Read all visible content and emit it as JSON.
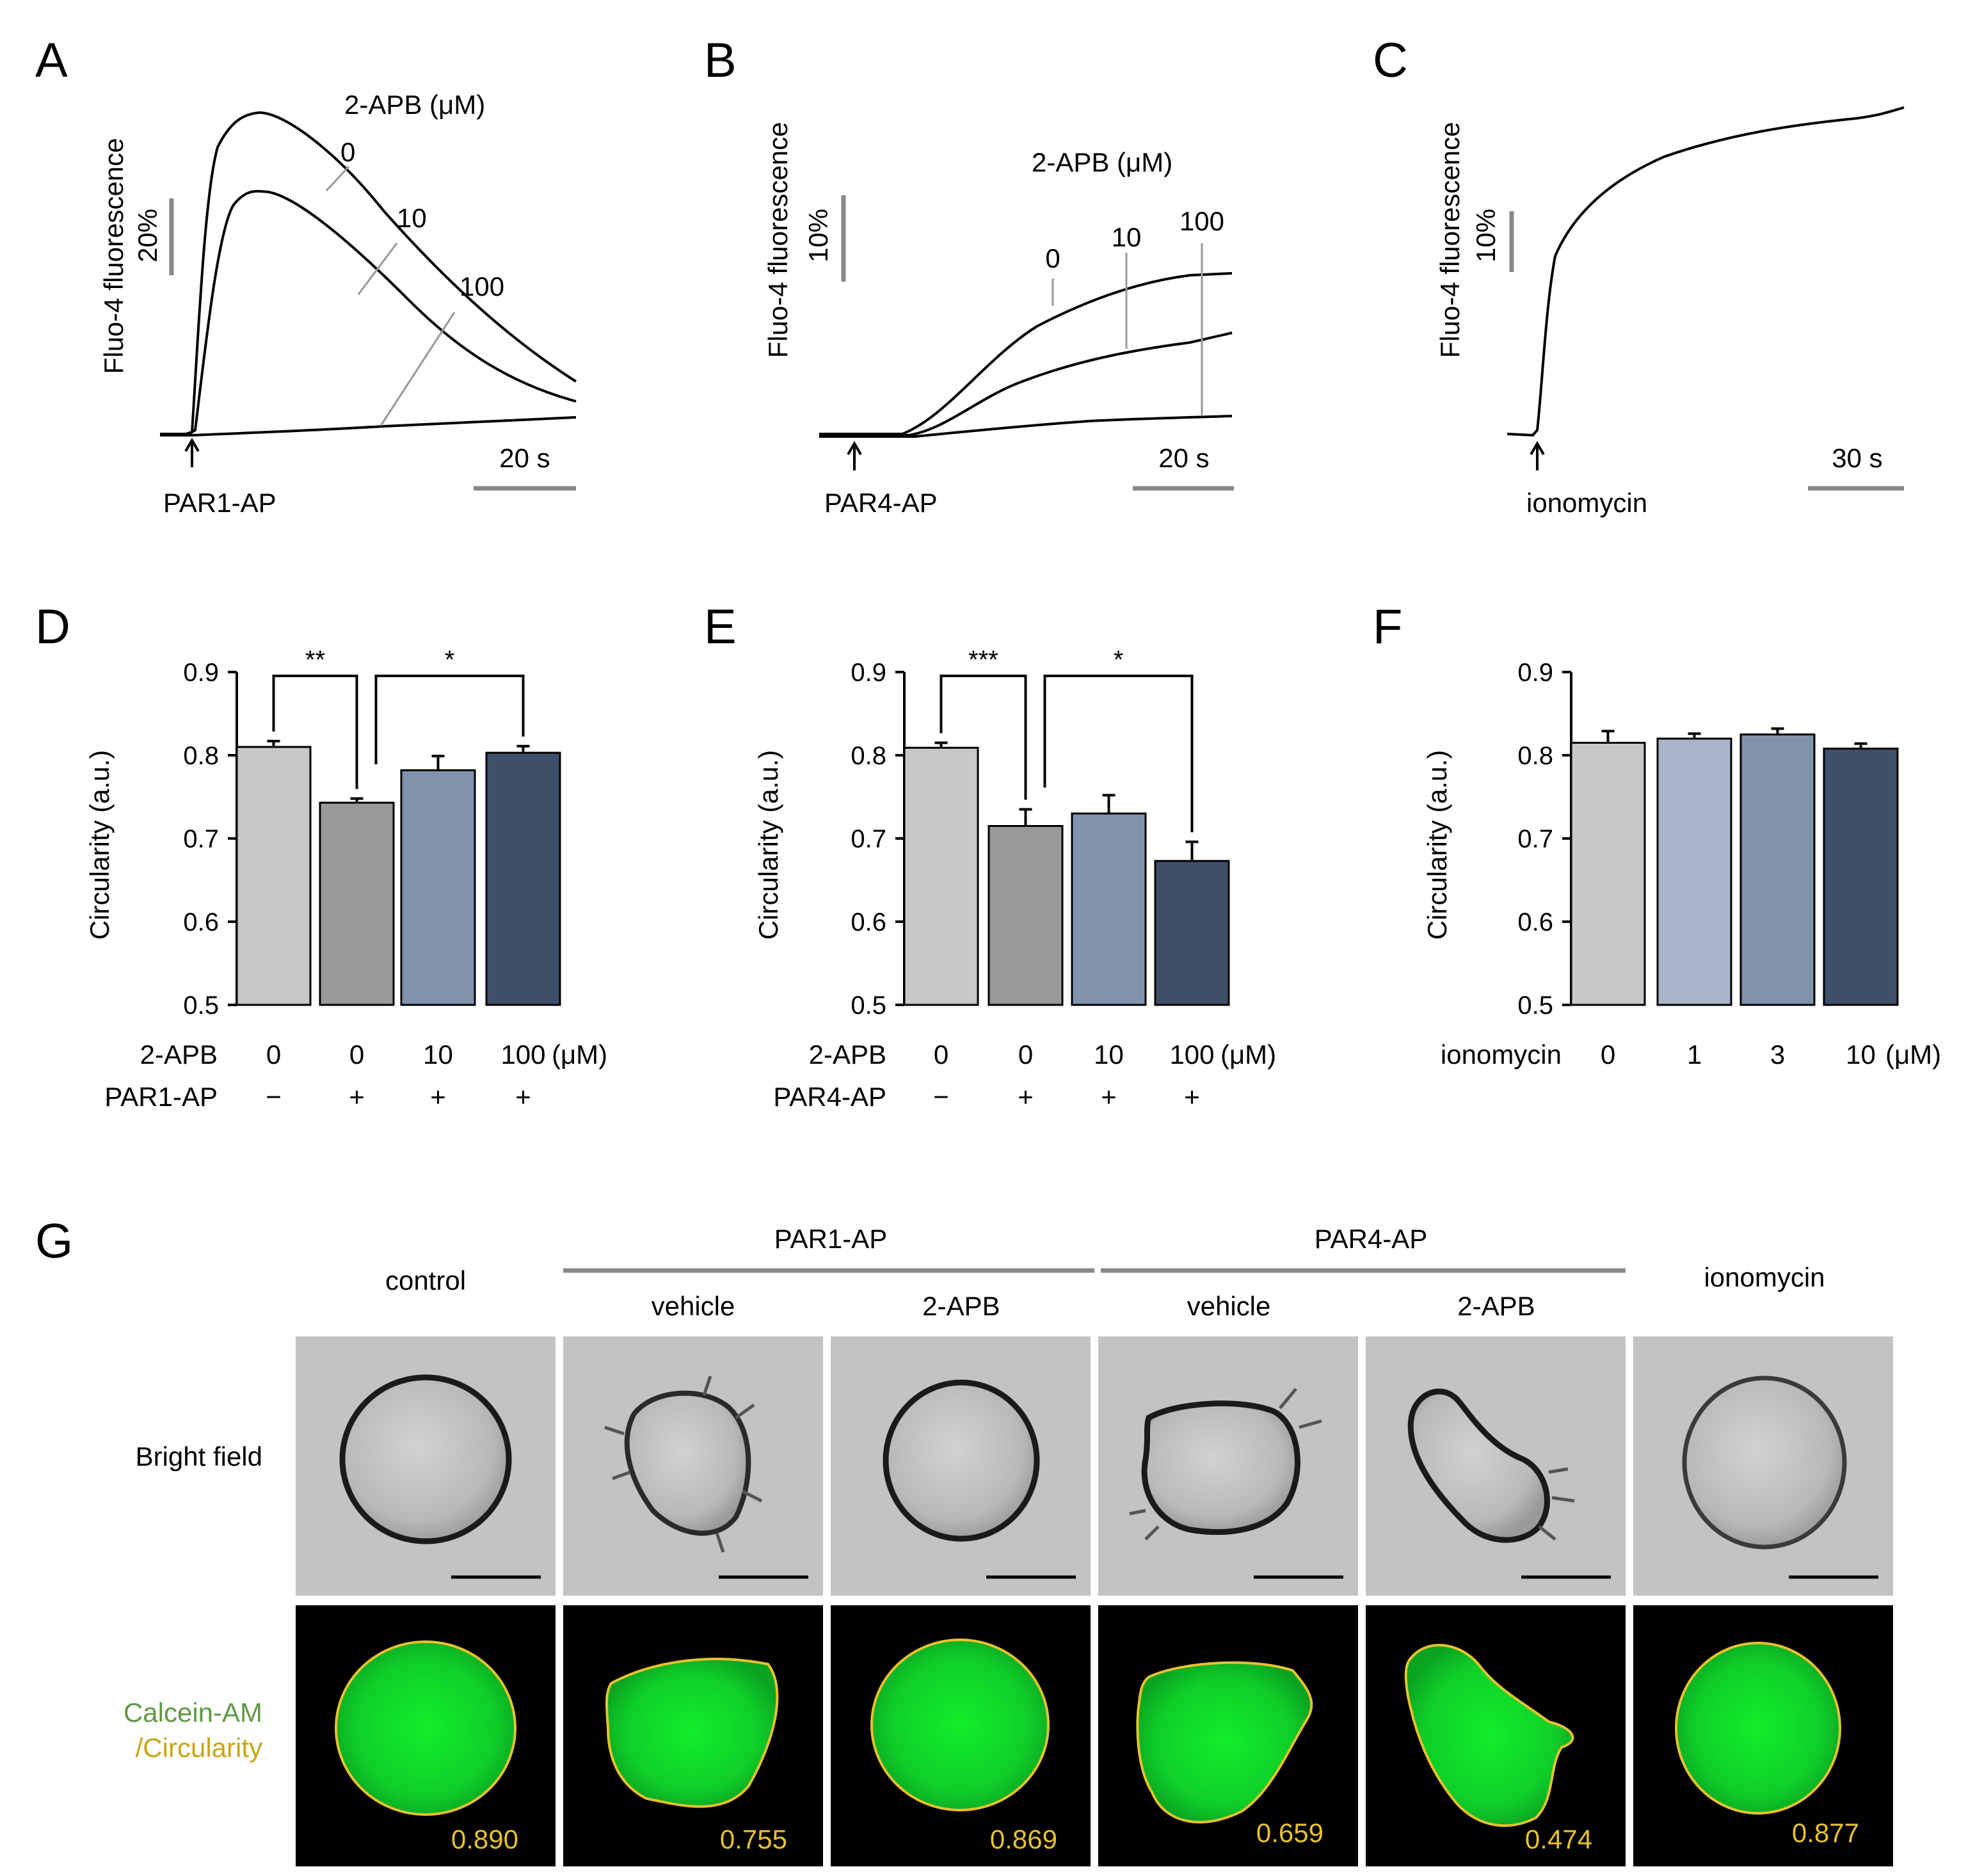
{
  "panel_letters": [
    "A",
    "B",
    "C",
    "D",
    "E",
    "F",
    "G"
  ],
  "traces": {
    "ylabel": "Fluo-4 fluorescence",
    "A": {
      "dose_title": "2-APB (μM)",
      "doses": [
        "0",
        "10",
        "100"
      ],
      "scale_y": "20%",
      "scale_x": "20 s",
      "stimulus": "PAR1-AP"
    },
    "B": {
      "dose_title": "2-APB (μM)",
      "doses": [
        "0",
        "10",
        "100"
      ],
      "scale_y": "10%",
      "scale_x": "20 s",
      "stimulus": "PAR4-AP"
    },
    "C": {
      "scale_y": "10%",
      "scale_x": "30 s",
      "stimulus": "ionomycin"
    }
  },
  "chart_data": [
    {
      "panel": "D",
      "type": "bar",
      "ylabel": "Circularity (a.u.)",
      "ylim": [
        0.5,
        0.9
      ],
      "yticks": [
        "0.5",
        "0.6",
        "0.7",
        "0.8",
        "0.9"
      ],
      "values": [
        0.81,
        0.743,
        0.782,
        0.803
      ],
      "errors": [
        0.007,
        0.005,
        0.017,
        0.008
      ],
      "colors": [
        "#c8c8c8",
        "#999999",
        "#8193ac",
        "#3f4f69"
      ],
      "row1_label": "2-APB",
      "row1": [
        "0",
        "0",
        "10",
        "100"
      ],
      "row1_unit": "(μM)",
      "row2_label": "PAR1-AP",
      "row2": [
        "−",
        "+",
        "+",
        "+"
      ],
      "significance": [
        {
          "between": [
            0,
            1
          ],
          "label": "**"
        },
        {
          "between": [
            1,
            3
          ],
          "label": "*"
        }
      ]
    },
    {
      "panel": "E",
      "type": "bar",
      "ylabel": "Circularity (a.u.)",
      "ylim": [
        0.5,
        0.9
      ],
      "yticks": [
        "0.5",
        "0.6",
        "0.7",
        "0.8",
        "0.9"
      ],
      "values": [
        0.809,
        0.715,
        0.73,
        0.673
      ],
      "errors": [
        0.006,
        0.02,
        0.022,
        0.023
      ],
      "colors": [
        "#c8c8c8",
        "#999999",
        "#8193ac",
        "#3f4f69"
      ],
      "row1_label": "2-APB",
      "row1": [
        "0",
        "0",
        "10",
        "100"
      ],
      "row1_unit": "(μM)",
      "row2_label": "PAR4-AP",
      "row2": [
        "−",
        "+",
        "+",
        "+"
      ],
      "significance": [
        {
          "between": [
            0,
            1
          ],
          "label": "***"
        },
        {
          "between": [
            1,
            3
          ],
          "label": "*"
        }
      ]
    },
    {
      "panel": "F",
      "type": "bar",
      "ylabel": "Circularity (a.u.)",
      "ylim": [
        0.5,
        0.9
      ],
      "yticks": [
        "0.5",
        "0.6",
        "0.7",
        "0.8",
        "0.9"
      ],
      "values": [
        0.815,
        0.82,
        0.825,
        0.808
      ],
      "errors": [
        0.014,
        0.006,
        0.007,
        0.006
      ],
      "colors": [
        "#c8c8c8",
        "#a9b5c8",
        "#8193ac",
        "#3f4f69"
      ],
      "row1_label": "ionomycin",
      "row1": [
        "0",
        "1",
        "3",
        "10"
      ],
      "row1_unit": "(μM)",
      "significance": []
    }
  ],
  "images": {
    "group_par1": "PAR1-AP",
    "group_par4": "PAR4-AP",
    "columns": [
      "control",
      "vehicle",
      "2-APB",
      "vehicle",
      "2-APB",
      "ionomycin"
    ],
    "row_brightfield": "Bright field",
    "row_calcein": "Calcein-AM",
    "row_circularity": "/Circularity",
    "circularity_values": [
      "0.890",
      "0.755",
      "0.869",
      "0.659",
      "0.474",
      "0.877"
    ]
  }
}
